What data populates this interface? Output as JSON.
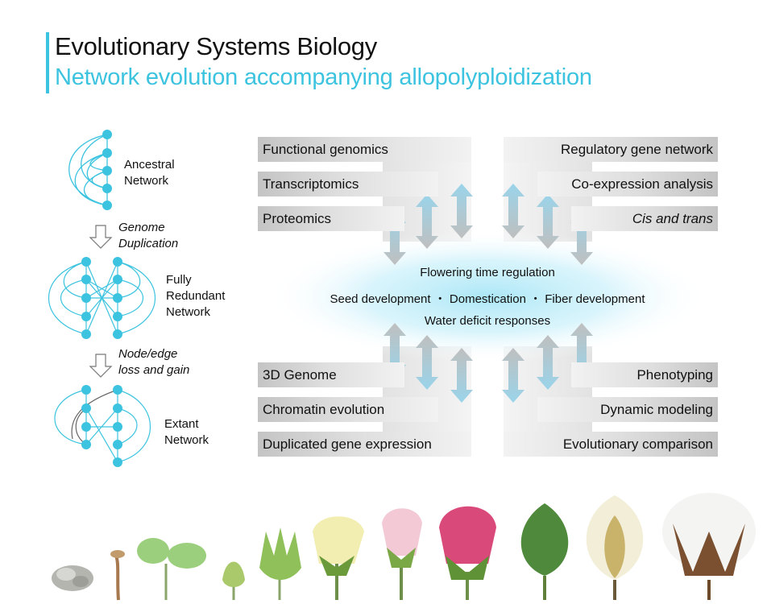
{
  "header": {
    "title": "Evolutionary Systems Biology",
    "subtitle": "Network evolution accompanying allopolyploidization"
  },
  "network_panel": {
    "ancestral_label": [
      "Ancestral",
      "Network"
    ],
    "step1_label": [
      "Genome",
      "Duplication"
    ],
    "redundant_label": [
      "Fully",
      "Redundant",
      "Network"
    ],
    "step2_label": [
      "Node/edge",
      "loss and gain"
    ],
    "extant_label": [
      "Extant",
      "Network"
    ]
  },
  "left_bars": [
    "Functional genomics",
    "Transcriptomics",
    "Proteomics",
    "3D Genome",
    "Chromatin evolution",
    "Duplicated gene expression"
  ],
  "right_bars": [
    "Regulatory gene network",
    "Co-expression analysis",
    "Cis and trans",
    "Phenotyping",
    "Dynamic modeling",
    "Evolutionary comparison"
  ],
  "center": {
    "line1": "Flowering time regulation",
    "line2": "Seed development  ・ Domestication  ・ Fiber development",
    "line3": "Water deficit responses"
  },
  "colors": {
    "accent": "#3cc3df",
    "node": "#3cc3df",
    "bar": "#c4c4c4",
    "arrow": "#9ad4ea"
  }
}
